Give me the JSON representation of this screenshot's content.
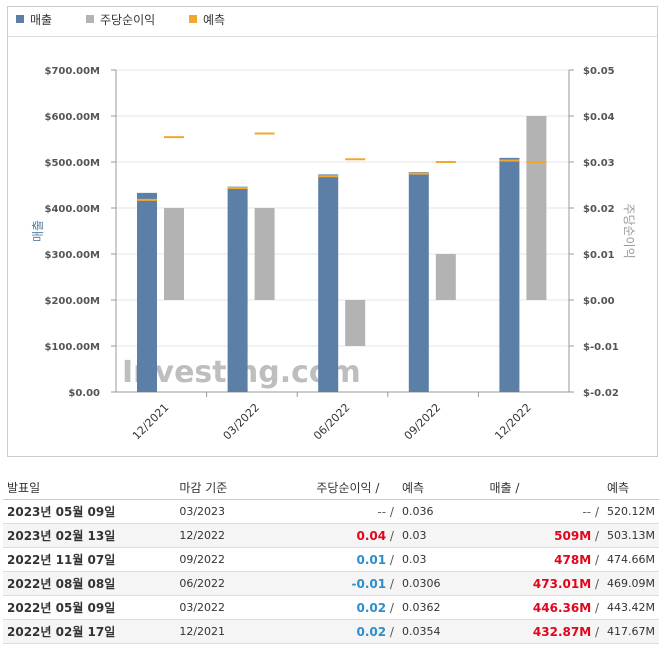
{
  "legend": [
    {
      "label": "매출",
      "color": "#5b7fa6"
    },
    {
      "label": "주당순이익",
      "color": "#b3b3b3"
    },
    {
      "label": "예측",
      "color": "#f0a830"
    }
  ],
  "chart_data": {
    "type": "bar",
    "categories": [
      "12/2021",
      "03/2022",
      "06/2022",
      "09/2022",
      "12/2022"
    ],
    "left_axis": {
      "label": "매출",
      "ticks": [
        "$0.00",
        "$100.00M",
        "$200.00M",
        "$300.00M",
        "$400.00M",
        "$500.00M",
        "$600.00M",
        "$700.00M"
      ],
      "ylim": [
        0,
        700
      ]
    },
    "right_axis": {
      "label": "주당순이익",
      "ticks": [
        "$-0.02",
        "$-0.01",
        "$0.00",
        "$0.01",
        "$0.02",
        "$0.03",
        "$0.04",
        "$0.05"
      ],
      "ylim": [
        -0.02,
        0.05
      ]
    },
    "series": [
      {
        "name": "매출",
        "axis": "left",
        "values": [
          432.87,
          446.36,
          473.01,
          478,
          509
        ],
        "color": "#5b7fa6"
      },
      {
        "name": "주당순이익",
        "axis": "right",
        "values": [
          0.02,
          0.02,
          -0.01,
          0.01,
          0.04
        ],
        "color": "#b3b3b3"
      },
      {
        "name": "예측",
        "axis": "left",
        "values": [
          417.67,
          443.42,
          469.09,
          474.66,
          503.13
        ],
        "color": "#f0a830"
      },
      {
        "name": "예측",
        "axis": "right",
        "values": [
          0.0354,
          0.0362,
          0.0306,
          0.03,
          0.03
        ],
        "color": "#f0a830"
      }
    ],
    "grid": true,
    "legend_position": "top-left"
  },
  "watermark": "Investing.com",
  "table": {
    "headers": {
      "date": "발표일",
      "period": "마감 기준",
      "eps": "주당순이익",
      "eps_forecast": "예측",
      "revenue": "매출",
      "revenue_forecast": "예측",
      "sep": "/"
    },
    "rows": [
      {
        "date": "2023년 05월 09일",
        "period": "03/2023",
        "eps": "--",
        "eps_class": "gray",
        "eps_forecast": "0.036",
        "revenue": "--",
        "rev_class": "gray",
        "revenue_forecast": "520.12M"
      },
      {
        "date": "2023년 02월 13일",
        "period": "12/2022",
        "eps": "0.04",
        "eps_class": "red",
        "eps_forecast": "0.03",
        "revenue": "509M",
        "rev_class": "red",
        "revenue_forecast": "503.13M"
      },
      {
        "date": "2022년 11월 07일",
        "period": "09/2022",
        "eps": "0.01",
        "eps_class": "pos",
        "eps_forecast": "0.03",
        "revenue": "478M",
        "rev_class": "red",
        "revenue_forecast": "474.66M"
      },
      {
        "date": "2022년 08월 08일",
        "period": "06/2022",
        "eps": "-0.01",
        "eps_class": "neg",
        "eps_forecast": "0.0306",
        "revenue": "473.01M",
        "rev_class": "red",
        "revenue_forecast": "469.09M"
      },
      {
        "date": "2022년 05월 09일",
        "period": "03/2022",
        "eps": "0.02",
        "eps_class": "pos",
        "eps_forecast": "0.0362",
        "revenue": "446.36M",
        "rev_class": "red",
        "revenue_forecast": "443.42M"
      },
      {
        "date": "2022년 02월 17일",
        "period": "12/2021",
        "eps": "0.02",
        "eps_class": "pos",
        "eps_forecast": "0.0354",
        "revenue": "432.87M",
        "rev_class": "red",
        "revenue_forecast": "417.67M"
      }
    ]
  }
}
